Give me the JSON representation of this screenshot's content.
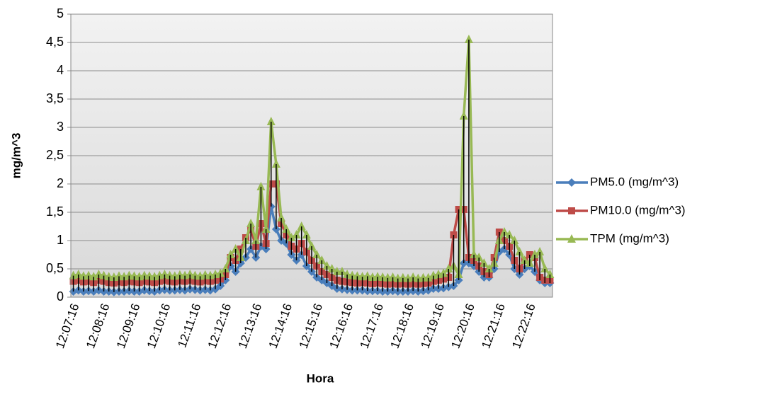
{
  "chart_data": {
    "type": "line",
    "y_label": "mg/m^3",
    "x_label": "Hora",
    "categories": [
      "12:07:16",
      null,
      null,
      null,
      null,
      null,
      "12:08:16",
      null,
      null,
      null,
      null,
      null,
      "12:09:16",
      null,
      null,
      null,
      null,
      null,
      "12:10:16",
      null,
      null,
      null,
      null,
      null,
      "12:11:16",
      null,
      null,
      null,
      null,
      null,
      "12:12:16",
      null,
      null,
      null,
      null,
      null,
      "12:13:16",
      null,
      null,
      null,
      null,
      null,
      "12:14:16",
      null,
      null,
      null,
      null,
      null,
      "12:15:16",
      null,
      null,
      null,
      null,
      null,
      "12:16:16",
      null,
      null,
      null,
      null,
      null,
      "12:17:16",
      null,
      null,
      null,
      null,
      null,
      "12:18:16",
      null,
      null,
      null,
      null,
      null,
      "12:19:16",
      null,
      null,
      null,
      null,
      null,
      "12:20:16",
      null,
      null,
      null,
      null,
      null,
      "12:21:16",
      null,
      null,
      null,
      null,
      null,
      "12:22:16",
      null,
      null,
      null,
      null
    ],
    "series": [
      {
        "name": "PM5.0 (mg/m^3)",
        "color": "#4a7ebb",
        "marker": "diamond",
        "values": [
          0.1,
          0.12,
          0.1,
          0.11,
          0.1,
          0.12,
          0.1,
          0.1,
          0.09,
          0.1,
          0.1,
          0.11,
          0.1,
          0.1,
          0.12,
          0.11,
          0.1,
          0.12,
          0.13,
          0.12,
          0.12,
          0.13,
          0.12,
          0.14,
          0.13,
          0.12,
          0.13,
          0.12,
          0.14,
          0.2,
          0.3,
          0.55,
          0.45,
          0.6,
          0.7,
          0.85,
          0.7,
          0.9,
          0.85,
          1.6,
          1.2,
          1.0,
          0.95,
          0.75,
          0.65,
          0.75,
          0.55,
          0.45,
          0.35,
          0.3,
          0.25,
          0.2,
          0.15,
          0.14,
          0.13,
          0.12,
          0.12,
          0.12,
          0.11,
          0.11,
          0.11,
          0.1,
          0.1,
          0.11,
          0.1,
          0.1,
          0.1,
          0.11,
          0.1,
          0.11,
          0.12,
          0.15,
          0.15,
          0.16,
          0.18,
          0.2,
          0.3,
          0.6,
          0.6,
          0.55,
          0.45,
          0.35,
          0.35,
          0.5,
          0.8,
          0.85,
          0.75,
          0.5,
          0.4,
          0.5,
          0.55,
          0.45,
          0.3,
          0.25,
          0.25
        ]
      },
      {
        "name": "PM10.0 (mg/m^3)",
        "color": "#be4b48",
        "marker": "square",
        "values": [
          0.28,
          0.3,
          0.27,
          0.28,
          0.26,
          0.3,
          0.28,
          0.26,
          0.25,
          0.27,
          0.26,
          0.28,
          0.27,
          0.26,
          0.28,
          0.27,
          0.26,
          0.28,
          0.3,
          0.28,
          0.27,
          0.29,
          0.28,
          0.3,
          0.28,
          0.27,
          0.29,
          0.28,
          0.3,
          0.32,
          0.4,
          0.7,
          0.65,
          0.85,
          1.05,
          1.2,
          0.9,
          1.3,
          0.95,
          2.0,
          2.0,
          1.3,
          1.1,
          0.9,
          0.85,
          0.95,
          0.8,
          0.65,
          0.55,
          0.45,
          0.4,
          0.35,
          0.3,
          0.28,
          0.27,
          0.26,
          0.25,
          0.26,
          0.25,
          0.24,
          0.25,
          0.24,
          0.23,
          0.24,
          0.23,
          0.24,
          0.23,
          0.24,
          0.23,
          0.24,
          0.25,
          0.28,
          0.3,
          0.32,
          0.35,
          1.1,
          1.55,
          1.55,
          0.7,
          0.65,
          0.55,
          0.45,
          0.4,
          0.7,
          1.15,
          1.0,
          0.9,
          0.65,
          0.5,
          0.65,
          0.75,
          0.7,
          0.35,
          0.3,
          0.3
        ]
      },
      {
        "name": "TPM (mg/m^3)",
        "color": "#98b954",
        "marker": "triangle",
        "values": [
          0.38,
          0.4,
          0.37,
          0.38,
          0.36,
          0.4,
          0.38,
          0.36,
          0.35,
          0.37,
          0.36,
          0.38,
          0.37,
          0.36,
          0.38,
          0.37,
          0.36,
          0.38,
          0.4,
          0.38,
          0.37,
          0.39,
          0.38,
          0.4,
          0.38,
          0.37,
          0.39,
          0.38,
          0.4,
          0.42,
          0.5,
          0.75,
          0.85,
          0.7,
          1.0,
          1.3,
          1.0,
          1.95,
          1.2,
          3.1,
          2.35,
          1.4,
          1.2,
          1.05,
          1.1,
          1.25,
          1.1,
          0.9,
          0.75,
          0.65,
          0.55,
          0.5,
          0.45,
          0.45,
          0.4,
          0.38,
          0.37,
          0.36,
          0.37,
          0.35,
          0.36,
          0.35,
          0.34,
          0.35,
          0.33,
          0.34,
          0.33,
          0.35,
          0.33,
          0.34,
          0.34,
          0.38,
          0.4,
          0.42,
          0.5,
          0.55,
          0.4,
          3.2,
          4.55,
          0.75,
          0.7,
          0.6,
          0.5,
          0.6,
          1.0,
          1.15,
          1.1,
          1.0,
          0.8,
          0.65,
          0.6,
          0.75,
          0.8,
          0.5,
          0.4
        ]
      }
    ],
    "ylim": [
      0,
      5
    ],
    "yticks": [
      0,
      {
        "value": 0.5,
        "label": "0,5"
      },
      1,
      {
        "value": 1.5,
        "label": "1,5"
      },
      2,
      {
        "value": 2.5,
        "label": "2,5"
      },
      3,
      {
        "value": 3.5,
        "label": "3,5"
      },
      4,
      {
        "value": 4.5,
        "label": "4,5"
      },
      5
    ],
    "grid": true,
    "hi_lo_lines": true,
    "legend": "right"
  }
}
